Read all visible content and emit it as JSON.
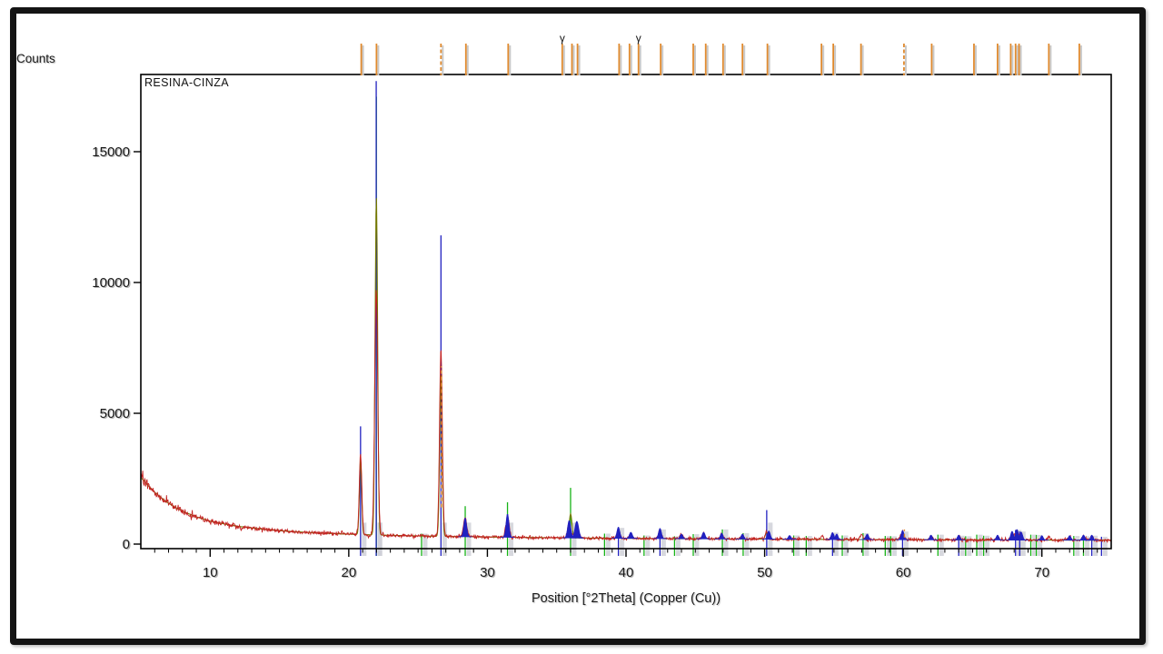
{
  "window": {
    "frame_color": "#141414",
    "background": "#ffffff"
  },
  "chart_data": {
    "type": "line",
    "subtype": "xrd-diffractogram",
    "title": "RESINA-CINZA",
    "ylabel": "Counts",
    "xlabel": "Position [°2Theta] (Copper (Cu))",
    "xlim": [
      5,
      75
    ],
    "ylim": [
      -450,
      17800
    ],
    "x_ticks": [
      10,
      20,
      30,
      40,
      50,
      60,
      70
    ],
    "y_ticks": [
      0,
      5000,
      10000,
      15000
    ],
    "grid": "off",
    "legend": "none",
    "colors": {
      "observed": "#c32222",
      "calculated": "#757a00",
      "ref_phase_blue": "#2121c0",
      "ref_phase_green": "#17b317",
      "peak_marker_orange": "#e08a2e",
      "stick_shadow": "#cdced6",
      "axis": "#000000"
    },
    "background_points": [
      [
        5,
        2550
      ],
      [
        5.5,
        2250
      ],
      [
        6,
        1980
      ],
      [
        6.5,
        1760
      ],
      [
        7,
        1560
      ],
      [
        7.5,
        1400
      ],
      [
        8,
        1260
      ],
      [
        9,
        1040
      ],
      [
        10,
        880
      ],
      [
        11,
        770
      ],
      [
        12,
        680
      ],
      [
        13,
        615
      ],
      [
        14,
        560
      ],
      [
        15,
        515
      ],
      [
        16,
        478
      ],
      [
        17,
        448
      ],
      [
        18,
        422
      ],
      [
        19,
        400
      ],
      [
        20,
        380
      ],
      [
        21,
        363
      ],
      [
        22,
        348
      ],
      [
        23,
        335
      ],
      [
        24,
        323
      ],
      [
        25,
        312
      ],
      [
        26,
        302
      ],
      [
        27,
        293
      ],
      [
        28,
        285
      ],
      [
        29,
        277
      ],
      [
        30,
        270
      ],
      [
        32,
        258
      ],
      [
        34,
        247
      ],
      [
        36,
        237
      ],
      [
        38,
        228
      ],
      [
        40,
        220
      ],
      [
        42,
        213
      ],
      [
        44,
        206
      ],
      [
        46,
        200
      ],
      [
        48,
        194
      ],
      [
        50,
        189
      ],
      [
        52,
        184
      ],
      [
        54,
        180
      ],
      [
        56,
        176
      ],
      [
        58,
        172
      ],
      [
        60,
        168
      ],
      [
        62,
        165
      ],
      [
        64,
        162
      ],
      [
        66,
        159
      ],
      [
        68,
        156
      ],
      [
        70,
        153
      ],
      [
        72,
        151
      ],
      [
        75,
        148
      ]
    ],
    "noise": {
      "base": 40,
      "bg_fraction": 0.05,
      "seed": 7
    },
    "observed_peaks": [
      [
        20.85,
        3450,
        0.09
      ],
      [
        21.98,
        9700,
        0.11
      ],
      [
        26.65,
        7500,
        0.1
      ],
      [
        28.4,
        980,
        0.12
      ],
      [
        31.45,
        1060,
        0.12
      ],
      [
        35.9,
        820,
        0.12
      ],
      [
        36.45,
        780,
        0.12
      ],
      [
        39.45,
        540,
        0.11
      ],
      [
        40.35,
        400,
        0.1
      ],
      [
        42.45,
        520,
        0.1
      ],
      [
        44.0,
        350,
        0.1
      ],
      [
        45.6,
        420,
        0.1
      ],
      [
        46.9,
        380,
        0.1
      ],
      [
        48.4,
        350,
        0.1
      ],
      [
        50.15,
        500,
        0.1
      ],
      [
        54.15,
        330,
        0.1
      ],
      [
        54.9,
        380,
        0.1
      ],
      [
        57.0,
        340,
        0.11
      ],
      [
        59.95,
        480,
        0.12
      ],
      [
        62.0,
        300,
        0.1
      ],
      [
        64.0,
        290,
        0.1
      ],
      [
        66.8,
        300,
        0.1
      ],
      [
        67.9,
        420,
        0.11
      ],
      [
        68.2,
        470,
        0.1
      ],
      [
        68.5,
        400,
        0.1
      ],
      [
        70.5,
        280,
        0.1
      ],
      [
        72.0,
        270,
        0.1
      ],
      [
        73.0,
        300,
        0.11
      ],
      [
        73.6,
        300,
        0.1
      ]
    ],
    "calculated_peaks": [
      [
        20.85,
        3250,
        0.08
      ],
      [
        21.99,
        13300,
        0.09
      ],
      [
        26.65,
        6500,
        0.09
      ],
      [
        28.4,
        930,
        0.1
      ],
      [
        31.45,
        1000,
        0.1
      ],
      [
        36.0,
        1150,
        0.1
      ],
      [
        39.45,
        480,
        0.1
      ],
      [
        42.45,
        460,
        0.1
      ],
      [
        45.6,
        380,
        0.1
      ],
      [
        46.9,
        350,
        0.1
      ],
      [
        50.15,
        450,
        0.1
      ],
      [
        54.9,
        340,
        0.1
      ],
      [
        59.95,
        420,
        0.1
      ],
      [
        62.0,
        280,
        0.1
      ],
      [
        66.8,
        280,
        0.1
      ],
      [
        68.2,
        430,
        0.12
      ],
      [
        73.0,
        290,
        0.1
      ]
    ],
    "blue_ref_lines": [
      [
        20.85,
        4500
      ],
      [
        21.98,
        17700
      ],
      [
        26.65,
        11800
      ],
      [
        39.45,
        620
      ],
      [
        42.45,
        560
      ],
      [
        50.15,
        1300
      ],
      [
        54.9,
        440
      ],
      [
        59.95,
        480
      ],
      [
        64.0,
        320
      ],
      [
        68.1,
        540
      ],
      [
        68.4,
        480
      ],
      [
        73.6,
        320
      ],
      [
        74.3,
        280
      ]
    ],
    "green_ref_lines": [
      [
        21.99,
        17100
      ],
      [
        25.25,
        400
      ],
      [
        28.4,
        1450
      ],
      [
        31.45,
        1600
      ],
      [
        36.0,
        2150
      ],
      [
        38.45,
        400
      ],
      [
        41.3,
        330
      ],
      [
        43.5,
        300
      ],
      [
        44.85,
        380
      ],
      [
        46.95,
        560
      ],
      [
        48.45,
        420
      ],
      [
        52.1,
        330
      ],
      [
        53.0,
        310
      ],
      [
        55.6,
        330
      ],
      [
        57.1,
        420
      ],
      [
        58.7,
        310
      ],
      [
        59.1,
        300
      ],
      [
        62.5,
        360
      ],
      [
        64.5,
        300
      ],
      [
        65.3,
        360
      ],
      [
        65.8,
        320
      ],
      [
        69.2,
        360
      ],
      [
        69.6,
        350
      ],
      [
        72.3,
        310
      ],
      [
        73.0,
        300
      ]
    ],
    "blue_profile_peaks": [
      [
        28.4,
        1000,
        0.1
      ],
      [
        31.45,
        1150,
        0.1
      ],
      [
        35.9,
        900,
        0.11
      ],
      [
        36.45,
        870,
        0.13
      ],
      [
        39.45,
        650,
        0.1
      ],
      [
        40.35,
        450,
        0.1
      ],
      [
        42.45,
        600,
        0.1
      ],
      [
        44.0,
        380,
        0.09
      ],
      [
        45.6,
        450,
        0.1
      ],
      [
        46.9,
        420,
        0.09
      ],
      [
        48.4,
        380,
        0.09
      ],
      [
        50.3,
        500,
        0.1
      ],
      [
        51.8,
        330,
        0.09
      ],
      [
        54.9,
        440,
        0.1
      ],
      [
        55.2,
        380,
        0.09
      ],
      [
        57.4,
        380,
        0.1
      ],
      [
        59.95,
        520,
        0.1
      ],
      [
        62.0,
        340,
        0.09
      ],
      [
        64.0,
        340,
        0.09
      ],
      [
        66.8,
        340,
        0.09
      ],
      [
        67.85,
        490,
        0.1
      ],
      [
        68.2,
        560,
        0.1
      ],
      [
        68.5,
        460,
        0.1
      ],
      [
        70.0,
        320,
        0.09
      ],
      [
        72.0,
        320,
        0.09
      ],
      [
        73.0,
        340,
        0.1
      ],
      [
        73.6,
        340,
        0.09
      ]
    ],
    "marker_lines": [
      {
        "pos": 26.65,
        "from": 1400,
        "to": 6800
      },
      {
        "pos": 60.05,
        "from": 250,
        "to": 560
      }
    ],
    "top_ticks": {
      "positions": [
        20.9,
        22.0,
        26.65,
        28.45,
        31.5,
        35.4,
        36.1,
        36.5,
        39.5,
        40.25,
        40.9,
        42.5,
        44.85,
        45.75,
        47.0,
        48.4,
        50.2,
        54.1,
        54.95,
        56.95,
        60.05,
        62.05,
        65.1,
        66.8,
        67.75,
        68.1,
        68.35,
        70.5,
        72.7
      ],
      "dashed": [
        26.65,
        60.05
      ],
      "gamma_markers": [
        35.4,
        40.9
      ],
      "gamma_glyph": "γ"
    }
  }
}
